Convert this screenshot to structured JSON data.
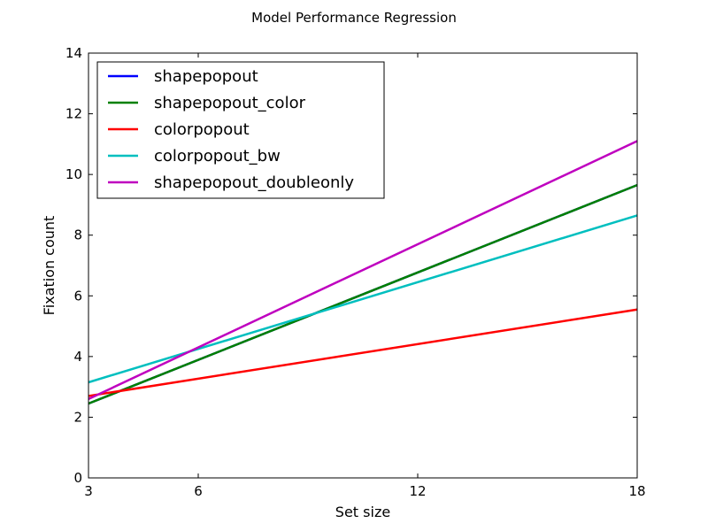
{
  "chart_data": {
    "type": "line",
    "title": "Model Performance Regression",
    "xlabel": "Set size",
    "ylabel": "Fixation count",
    "xlim": [
      3,
      18
    ],
    "ylim": [
      0,
      14
    ],
    "xticks": [
      3,
      6,
      12,
      18
    ],
    "yticks": [
      0,
      2,
      4,
      6,
      8,
      10,
      12,
      14
    ],
    "grid": false,
    "legend_position": "top-left",
    "series": [
      {
        "name": "shapepopout",
        "color": "#0000ff",
        "x": [
          3,
          18
        ],
        "y": [
          2.45,
          9.65
        ]
      },
      {
        "name": "shapepopout_color",
        "color": "#008000",
        "x": [
          3,
          18
        ],
        "y": [
          2.45,
          9.65
        ]
      },
      {
        "name": "colorpopout",
        "color": "#ff0000",
        "x": [
          3,
          18
        ],
        "y": [
          2.7,
          5.55
        ]
      },
      {
        "name": "colorpopout_bw",
        "color": "#00bfbf",
        "x": [
          3,
          18
        ],
        "y": [
          3.15,
          8.65
        ]
      },
      {
        "name": "shapepopout_doubleonly",
        "color": "#bf00bf",
        "x": [
          3,
          18
        ],
        "y": [
          2.6,
          11.1
        ]
      }
    ]
  }
}
